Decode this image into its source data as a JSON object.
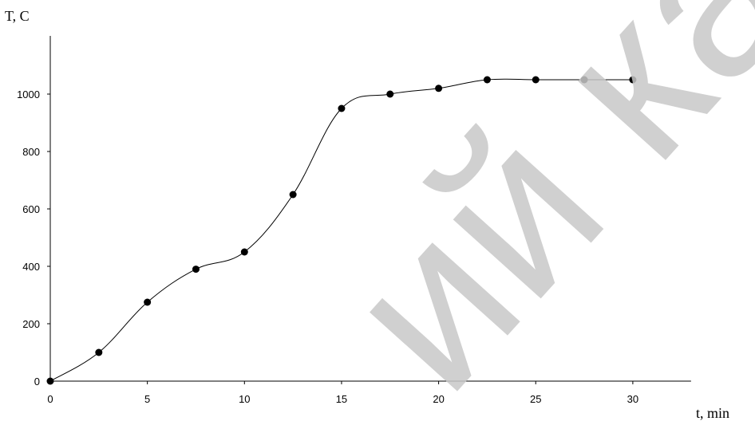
{
  "chart_data": {
    "type": "line",
    "title": "",
    "xlabel": "t, min",
    "ylabel": "T, C",
    "xlim": [
      0,
      33
    ],
    "ylim": [
      0,
      1200
    ],
    "xticks": [
      0,
      5,
      10,
      15,
      20,
      25,
      30
    ],
    "yticks": [
      0,
      200,
      400,
      600,
      800,
      1000
    ],
    "grid": false,
    "legend": "none",
    "series": [
      {
        "x": [
          0,
          2.5,
          5,
          7.5,
          10,
          12.5,
          15,
          17.5,
          20,
          22.5,
          25,
          27.5,
          30
        ],
        "y": [
          0,
          100,
          275,
          390,
          450,
          650,
          950,
          1000,
          1020,
          1050,
          1050,
          1050,
          1050
        ]
      }
    ],
    "watermark": "ий кар",
    "colors": {
      "line": "#000000",
      "marker": "#000000",
      "watermark": "#c8c8c8"
    }
  }
}
